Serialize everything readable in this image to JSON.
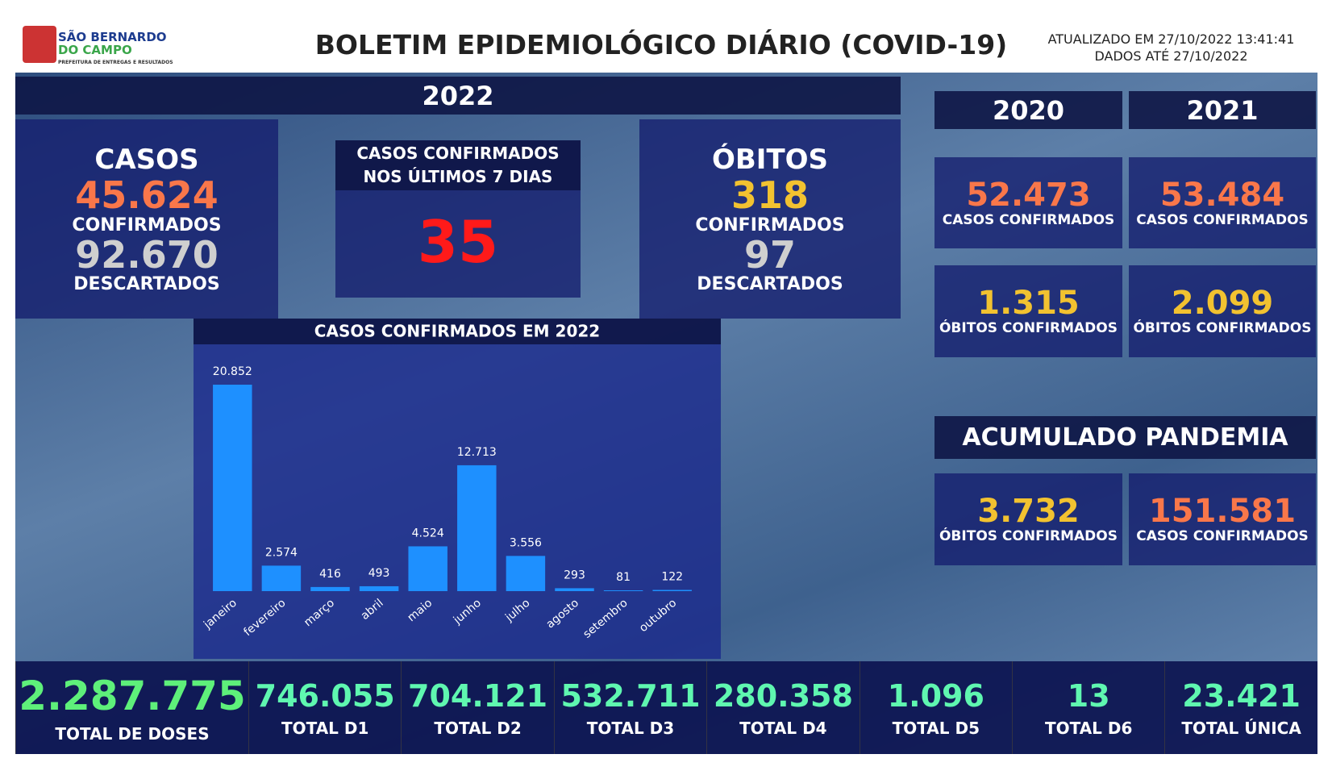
{
  "header": {
    "logo_line1": "SÃO BERNARDO",
    "logo_line2": "DO CAMPO",
    "logo_sub": "PREFEITURA DE ENTREGAS E RESULTADOS",
    "title": "BOLETIM EPIDEMIOLÓGICO DIÁRIO (COVID-19)",
    "updated": "ATUALIZADO EM 27/10/2022 13:41:41",
    "data_until": "DADOS ATÉ 27/10/2022"
  },
  "year_2022": {
    "label": "2022",
    "cases": {
      "title": "CASOS",
      "confirmed": "45.624",
      "confirmed_label": "CONFIRMADOS",
      "discarded": "92.670",
      "discarded_label": "DESCARTADOS"
    },
    "last7": {
      "title_line1": "CASOS CONFIRMADOS",
      "title_line2": "NOS ÚLTIMOS 7 DIAS",
      "value": "35"
    },
    "deaths": {
      "title": "ÓBITOS",
      "confirmed": "318",
      "confirmed_label": "CONFIRMADOS",
      "discarded": "97",
      "discarded_label": "DESCARTADOS"
    }
  },
  "years": [
    {
      "label": "2020",
      "cases": "52.473",
      "cases_label": "CASOS CONFIRMADOS",
      "deaths": "1.315",
      "deaths_label": "ÓBITOS CONFIRMADOS"
    },
    {
      "label": "2021",
      "cases": "53.484",
      "cases_label": "CASOS CONFIRMADOS",
      "deaths": "2.099",
      "deaths_label": "ÓBITOS CONFIRMADOS"
    }
  ],
  "cumulative": {
    "title": "ACUMULADO PANDEMIA",
    "deaths": "3.732",
    "deaths_label": "ÓBITOS CONFIRMADOS",
    "cases": "151.581",
    "cases_label": "CASOS CONFIRMADOS"
  },
  "chart_data": {
    "type": "bar",
    "title": "CASOS CONFIRMADOS EM 2022",
    "categories": [
      "janeiro",
      "fevereiro",
      "março",
      "abril",
      "maio",
      "junho",
      "julho",
      "agosto",
      "setembro",
      "outubro"
    ],
    "values": [
      20852,
      2574,
      416,
      493,
      4524,
      12713,
      3556,
      293,
      81,
      122
    ],
    "value_labels": [
      "20.852",
      "2.574",
      "416",
      "493",
      "4.524",
      "12.713",
      "3.556",
      "293",
      "81",
      "122"
    ],
    "color": "#1e90ff"
  },
  "doses": [
    {
      "value": "2.287.775",
      "label": "TOTAL DE DOSES"
    },
    {
      "value": "746.055",
      "label": "TOTAL D1"
    },
    {
      "value": "704.121",
      "label": "TOTAL D2"
    },
    {
      "value": "532.711",
      "label": "TOTAL D3"
    },
    {
      "value": "280.358",
      "label": "TOTAL D4"
    },
    {
      "value": "1.096",
      "label": "TOTAL D5"
    },
    {
      "value": "13",
      "label": "TOTAL D6"
    },
    {
      "value": "23.421",
      "label": "TOTAL ÚNICA"
    }
  ]
}
